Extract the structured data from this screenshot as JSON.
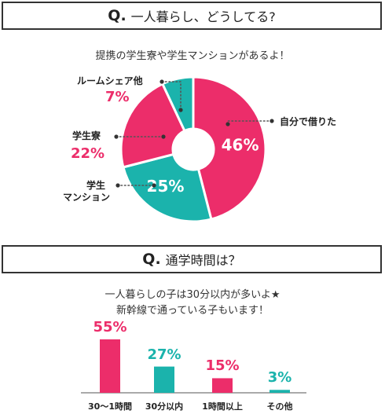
{
  "question1": {
    "q_mark": "Q.",
    "title": "一人暮らし、どうしてる?",
    "subtitle": "提携の学生寮や学生マンションがあるよ！"
  },
  "question2": {
    "q_mark": "Q.",
    "title": "通学時間は？",
    "subtitle_line1": "一人暮らしの子は30分以内が多いよ★",
    "subtitle_line2": "新幹線で通っている子もいます！"
  },
  "chart_data": [
    {
      "type": "pie",
      "title": "一人暮らし、どうしてる?",
      "categories": [
        "自分で借りた",
        "学生マンション",
        "学生寮",
        "ルームシェア他"
      ],
      "values": [
        46,
        25,
        22,
        7
      ],
      "labels": {
        "rent": "自分で借りた",
        "mansion_1": "学生",
        "mansion_2": "マンション",
        "dorm": "学生寮",
        "share": "ルームシェア他"
      },
      "value_labels": [
        "46%",
        "25%",
        "22%",
        "7%"
      ],
      "colors": [
        "#ec2d6a",
        "#1bb3ac",
        "#ec2d6a",
        "#1bb3ac"
      ]
    },
    {
      "type": "bar",
      "title": "通学時間は？",
      "categories": [
        "30〜1時間",
        "30分以内",
        "1時間以上",
        "その他"
      ],
      "values": [
        55,
        27,
        15,
        3
      ],
      "value_labels": [
        "55%",
        "27%",
        "15%",
        "3%"
      ],
      "colors": [
        "#ec2d6a",
        "#1bb3ac",
        "#ec2d6a",
        "#1bb3ac"
      ],
      "ylim": [
        0,
        55
      ]
    }
  ],
  "colors": {
    "pink": "#ec2d6a",
    "teal": "#1bb3ac",
    "dot": "#555555"
  }
}
